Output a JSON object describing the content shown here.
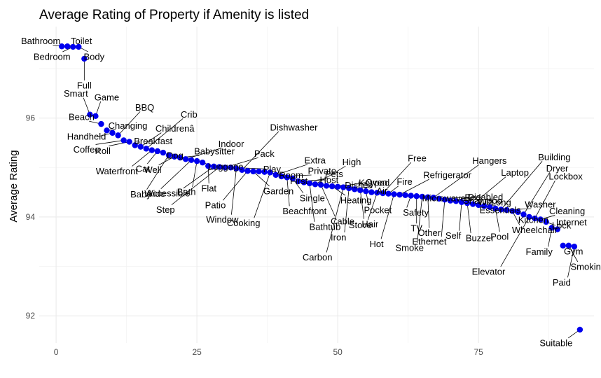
{
  "chart_data": {
    "type": "scatter",
    "title": "Average Rating of Property if Amenity is listed",
    "xlabel": "",
    "ylabel": "Average Rating",
    "xlim": [
      -3,
      95.5
    ],
    "ylim": [
      91.45,
      97.85
    ],
    "xticks": [
      0,
      25,
      50,
      75
    ],
    "yticks": [
      92,
      94,
      96
    ],
    "grid": true,
    "point_color": "#0000ee",
    "points": [
      {
        "x": 1,
        "y": 97.45,
        "label": "Bathroom"
      },
      {
        "x": 2,
        "y": 97.45,
        "label": "Toilet"
      },
      {
        "x": 3,
        "y": 97.44,
        "label": "Bedroom"
      },
      {
        "x": 4,
        "y": 97.44,
        "label": "Body"
      },
      {
        "x": 5,
        "y": 97.2,
        "label": "Full"
      },
      {
        "x": 6,
        "y": 96.07,
        "label": "Smart"
      },
      {
        "x": 7,
        "y": 96.04,
        "label": "Game"
      },
      {
        "x": 8,
        "y": 95.88,
        "label": "Beach"
      },
      {
        "x": 9,
        "y": 95.75,
        "label": "Changing"
      },
      {
        "x": 10,
        "y": 95.7,
        "label": "Handheld"
      },
      {
        "x": 11,
        "y": 95.65,
        "label": "BBQ"
      },
      {
        "x": 12,
        "y": 95.55,
        "label": "Coffee"
      },
      {
        "x": 13,
        "y": 95.52,
        "label": "Roll"
      },
      {
        "x": 14,
        "y": 95.45,
        "label": "Breakfast"
      },
      {
        "x": 15,
        "y": 95.42,
        "label": "Childrenâ"
      },
      {
        "x": 16,
        "y": 95.38,
        "label": "Crib"
      },
      {
        "x": 17,
        "y": 95.35,
        "label": "Waterfront"
      },
      {
        "x": 18,
        "y": 95.33,
        "label": "Cat"
      },
      {
        "x": 19,
        "y": 95.3,
        "label": "Dog"
      },
      {
        "x": 20,
        "y": 95.25,
        "label": "Baby"
      },
      {
        "x": 21,
        "y": 95.22,
        "label": "Well"
      },
      {
        "x": 22,
        "y": 95.2,
        "label": "Babysitter"
      },
      {
        "x": 23,
        "y": 95.17,
        "label": "Indoor"
      },
      {
        "x": 24,
        "y": 95.15,
        "label": "Wide"
      },
      {
        "x": 25,
        "y": 95.13,
        "label": "Bath"
      },
      {
        "x": 26,
        "y": 95.1,
        "label": "Luggage"
      },
      {
        "x": 27,
        "y": 95.03,
        "label": "Flat"
      },
      {
        "x": 28,
        "y": 95.02,
        "label": "Accessible"
      },
      {
        "x": 29,
        "y": 95.01,
        "label": "Step"
      },
      {
        "x": 30,
        "y": 95.0,
        "label": "Pack"
      },
      {
        "x": 31,
        "y": 95.0,
        "label": "Play"
      },
      {
        "x": 32,
        "y": 94.98,
        "label": "Window"
      },
      {
        "x": 33,
        "y": 94.95,
        "label": "Dishwasher"
      },
      {
        "x": 34,
        "y": 94.93,
        "label": "Patio"
      },
      {
        "x": 35,
        "y": 94.92,
        "label": "Garden"
      },
      {
        "x": 36,
        "y": 94.92,
        "label": "Room"
      },
      {
        "x": 37,
        "y": 94.91,
        "label": "First"
      },
      {
        "x": 38,
        "y": 94.9,
        "label": "Cooking"
      },
      {
        "x": 39,
        "y": 94.85,
        "label": "Extra"
      },
      {
        "x": 40,
        "y": 94.82,
        "label": "Private"
      },
      {
        "x": 41,
        "y": 94.8,
        "label": "Beachfront"
      },
      {
        "x": 42,
        "y": 94.78,
        "label": "Single"
      },
      {
        "x": 43,
        "y": 94.72,
        "label": "Host"
      },
      {
        "x": 44,
        "y": 94.7,
        "label": "Pets"
      },
      {
        "x": 45,
        "y": 94.68,
        "label": "Bathtub"
      },
      {
        "x": 46,
        "y": 94.66,
        "label": "High"
      },
      {
        "x": 47,
        "y": 94.65,
        "label": "Cable"
      },
      {
        "x": 48,
        "y": 94.63,
        "label": "Dishes"
      },
      {
        "x": 49,
        "y": 94.62,
        "label": "Heating"
      },
      {
        "x": 50,
        "y": 94.61,
        "label": "Keypad"
      },
      {
        "x": 51,
        "y": 94.6,
        "label": "Carbon"
      },
      {
        "x": 52,
        "y": 94.58,
        "label": "Iron"
      },
      {
        "x": 53,
        "y": 94.56,
        "label": "Oven"
      },
      {
        "x": 54,
        "y": 94.54,
        "label": "Hair"
      },
      {
        "x": 55,
        "y": 94.52,
        "label": "Pocket"
      },
      {
        "x": 56,
        "y": 94.5,
        "label": "Air"
      },
      {
        "x": 57,
        "y": 94.49,
        "label": "Stove"
      },
      {
        "x": 58,
        "y": 94.48,
        "label": "Free"
      },
      {
        "x": 59,
        "y": 94.47,
        "label": "Fire"
      },
      {
        "x": 60,
        "y": 94.46,
        "label": "Hot"
      },
      {
        "x": 61,
        "y": 94.45,
        "label": "Refrigerator"
      },
      {
        "x": 62,
        "y": 94.44,
        "label": "Microwave"
      },
      {
        "x": 63,
        "y": 94.43,
        "label": "Safety"
      },
      {
        "x": 64,
        "y": 94.42,
        "label": "TV"
      },
      {
        "x": 65,
        "y": 94.41,
        "label": "Smoke"
      },
      {
        "x": 66,
        "y": 94.4,
        "label": "Other"
      },
      {
        "x": 67,
        "y": 94.39,
        "label": "Hangers"
      },
      {
        "x": 68,
        "y": 94.37,
        "label": "Bed"
      },
      {
        "x": 69,
        "y": 94.35,
        "label": "Ethernet"
      },
      {
        "x": 70,
        "y": 94.33,
        "label": "Disabled"
      },
      {
        "x": 71,
        "y": 94.32,
        "label": "Shampoo"
      },
      {
        "x": 72,
        "y": 94.3,
        "label": "Self"
      },
      {
        "x": 73,
        "y": 94.28,
        "label": "Buzzer"
      },
      {
        "x": 74,
        "y": 94.26,
        "label": "Laptop"
      },
      {
        "x": 75,
        "y": 94.24,
        "label": "Essentials"
      },
      {
        "x": 76,
        "y": 94.22,
        "label": "Wifi"
      },
      {
        "x": 77,
        "y": 94.2,
        "label": "Long"
      },
      {
        "x": 78,
        "y": 94.17,
        "label": "Pool"
      },
      {
        "x": 79,
        "y": 94.15,
        "label": "Building"
      },
      {
        "x": 80,
        "y": 94.14,
        "label": "Washer"
      },
      {
        "x": 81,
        "y": 94.12,
        "label": "Wheelchair"
      },
      {
        "x": 82,
        "y": 94.1,
        "label": "Kitchen"
      },
      {
        "x": 83,
        "y": 94.05,
        "label": "Dryer"
      },
      {
        "x": 84,
        "y": 94.0,
        "label": "Elevator"
      },
      {
        "x": 85,
        "y": 93.97,
        "label": "Lockbox"
      },
      {
        "x": 86,
        "y": 93.95,
        "label": "Cleaning"
      },
      {
        "x": 87,
        "y": 93.9,
        "label": "Lock"
      },
      {
        "x": 88,
        "y": 93.78,
        "label": "Family"
      },
      {
        "x": 89,
        "y": 93.75,
        "label": "Internet"
      },
      {
        "x": 90,
        "y": 93.42,
        "label": "Gym"
      },
      {
        "x": 91,
        "y": 93.42,
        "label": "Smoking"
      },
      {
        "x": 92,
        "y": 93.4,
        "label": "Paid"
      },
      {
        "x": 93,
        "y": 91.72,
        "label": "Suitable"
      }
    ]
  }
}
